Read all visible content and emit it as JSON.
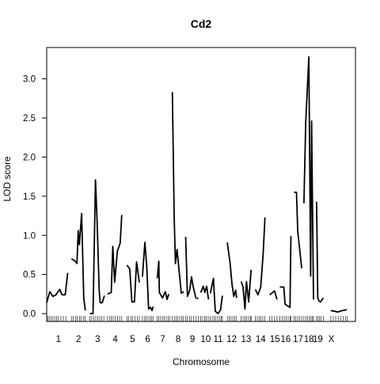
{
  "chart_data": {
    "type": "line",
    "title": "Cd2",
    "xlabel": "Chromosome",
    "ylabel": "LOD score",
    "ylim": [
      -0.1,
      3.4
    ],
    "yticks": [
      0.0,
      0.5,
      1.0,
      1.5,
      2.0,
      2.5,
      3.0
    ],
    "ytick_labels": [
      "0.0",
      "0.5",
      "1.0",
      "1.5",
      "2.0",
      "2.5",
      "3.0"
    ],
    "xlim": [
      0,
      100
    ],
    "grid": false,
    "rug": true,
    "chromosomes": [
      {
        "label": "1",
        "points": [
          [
            0.0,
            0.14
          ],
          [
            1.0,
            0.28
          ],
          [
            2.0,
            0.22
          ],
          [
            3.0,
            0.24
          ],
          [
            4.2,
            0.31
          ],
          [
            5.0,
            0.24
          ],
          [
            6.0,
            0.24
          ],
          [
            6.8,
            0.52
          ]
        ]
      },
      {
        "label": "2",
        "points": [
          [
            8.0,
            0.7
          ],
          [
            9.0,
            0.68
          ],
          [
            9.8,
            0.64
          ],
          [
            10.2,
            1.06
          ],
          [
            10.6,
            0.88
          ],
          [
            11.3,
            1.28
          ],
          [
            12.0,
            0.2
          ],
          [
            12.5,
            0.04
          ]
        ]
      },
      {
        "label": "3",
        "points": [
          [
            14.0,
            0.0
          ],
          [
            15.0,
            0.0
          ],
          [
            15.8,
            1.71
          ],
          [
            16.3,
            1.2
          ],
          [
            17.0,
            0.3
          ],
          [
            17.3,
            0.14
          ],
          [
            18.0,
            0.14
          ],
          [
            18.7,
            0.23
          ]
        ]
      },
      {
        "label": "4",
        "points": [
          [
            19.7,
            0.25
          ],
          [
            20.9,
            0.27
          ],
          [
            21.4,
            0.86
          ],
          [
            22.0,
            0.4
          ],
          [
            22.9,
            0.8
          ],
          [
            23.8,
            0.9
          ],
          [
            24.3,
            1.26
          ]
        ]
      },
      {
        "label": "5",
        "points": [
          [
            26.0,
            0.62
          ],
          [
            26.9,
            0.57
          ],
          [
            27.6,
            0.15
          ],
          [
            28.4,
            0.15
          ],
          [
            29.1,
            0.66
          ],
          [
            30.0,
            0.4
          ]
        ]
      },
      {
        "label": "6",
        "points": [
          [
            31.0,
            0.47
          ],
          [
            31.8,
            0.91
          ],
          [
            32.4,
            0.6
          ],
          [
            33.0,
            0.06
          ],
          [
            33.6,
            0.08
          ],
          [
            34.1,
            0.04
          ],
          [
            34.5,
            0.09
          ]
        ]
      },
      {
        "label": "7",
        "points": [
          [
            35.8,
            0.45
          ],
          [
            36.3,
            0.67
          ],
          [
            36.5,
            0.27
          ],
          [
            37.5,
            0.2
          ],
          [
            38.4,
            0.28
          ],
          [
            39.0,
            0.18
          ],
          [
            39.5,
            0.25
          ]
        ]
      },
      {
        "label": "8",
        "points": [
          [
            40.7,
            2.83
          ],
          [
            41.3,
            1.2
          ],
          [
            41.7,
            0.64
          ],
          [
            42.2,
            0.82
          ],
          [
            43.0,
            0.5
          ],
          [
            43.6,
            0.26
          ],
          [
            44.4,
            0.28
          ]
        ]
      },
      {
        "label": "9",
        "points": [
          [
            45.0,
            0.98
          ],
          [
            45.6,
            0.22
          ],
          [
            46.3,
            0.3
          ],
          [
            46.9,
            0.47
          ],
          [
            47.4,
            0.35
          ],
          [
            48.3,
            0.2
          ],
          [
            49.1,
            0.19
          ]
        ]
      },
      {
        "label": "10",
        "points": [
          [
            49.9,
            0.27
          ],
          [
            50.7,
            0.35
          ],
          [
            51.2,
            0.27
          ],
          [
            51.8,
            0.35
          ],
          [
            52.4,
            0.18
          ]
        ]
      },
      {
        "label": "11",
        "points": [
          [
            53.0,
            0.26
          ],
          [
            54.0,
            0.45
          ],
          [
            54.6,
            0.03
          ],
          [
            55.5,
            0.0
          ],
          [
            56.3,
            0.05
          ],
          [
            56.9,
            0.23
          ]
        ]
      },
      {
        "label": "12",
        "points": [
          [
            58.5,
            0.91
          ],
          [
            59.4,
            0.64
          ],
          [
            60.0,
            0.38
          ],
          [
            60.6,
            0.22
          ],
          [
            61.2,
            0.3
          ],
          [
            61.5,
            0.2
          ]
        ]
      },
      {
        "label": "13",
        "points": [
          [
            63.0,
            0.41
          ],
          [
            63.6,
            0.34
          ],
          [
            64.2,
            0.06
          ],
          [
            64.7,
            0.41
          ],
          [
            65.4,
            0.15
          ],
          [
            66.2,
            0.56
          ]
        ]
      },
      {
        "label": "14",
        "points": [
          [
            67.6,
            0.31
          ],
          [
            68.4,
            0.24
          ],
          [
            69.3,
            0.34
          ],
          [
            70.1,
            0.76
          ],
          [
            70.7,
            1.23
          ]
        ]
      },
      {
        "label": "15",
        "points": [
          [
            72.2,
            0.24
          ],
          [
            73.8,
            0.29
          ],
          [
            74.6,
            0.18
          ]
        ]
      },
      {
        "label": "16",
        "points": [
          [
            75.5,
            0.34
          ],
          [
            76.8,
            0.34
          ],
          [
            77.2,
            0.12
          ],
          [
            78.8,
            0.08
          ],
          [
            79.1,
            0.99
          ]
        ]
      },
      {
        "label": "17",
        "points": [
          [
            80.1,
            1.55
          ],
          [
            80.9,
            1.55
          ],
          [
            81.3,
            1.05
          ],
          [
            82.6,
            0.58
          ]
        ]
      },
      {
        "label": "18",
        "points": [
          [
            83.3,
            1.41
          ],
          [
            83.9,
            2.45
          ],
          [
            84.9,
            3.28
          ],
          [
            85.5,
            0.48
          ],
          [
            85.8,
            2.46
          ],
          [
            86.4,
            0.18
          ]
        ]
      },
      {
        "label": "19",
        "points": [
          [
            87.4,
            1.43
          ],
          [
            87.8,
            0.2
          ],
          [
            88.2,
            0.16
          ],
          [
            88.7,
            0.15
          ],
          [
            89.6,
            0.2
          ]
        ]
      },
      {
        "label": "X",
        "points": [
          [
            92.0,
            0.04
          ],
          [
            93.3,
            0.03
          ],
          [
            94.2,
            0.02
          ],
          [
            95.8,
            0.04
          ],
          [
            97.2,
            0.05
          ]
        ]
      }
    ],
    "chromosome_label_x": [
      3.8,
      10.3,
      16.5,
      22.2,
      27.8,
      32.7,
      37.6,
      42.6,
      47.2,
      51.5,
      55.5,
      59.9,
      64.6,
      69.3,
      73.9,
      77.4,
      81.4,
      84.9,
      87.8,
      92.2
    ],
    "marker_positions": [
      0.3,
      0.8,
      1.4,
      2.0,
      2.6,
      3.2,
      3.8,
      4.6,
      5.4,
      6.2,
      8.0,
      8.6,
      9.3,
      9.9,
      10.6,
      11.2,
      12.0,
      12.5,
      14.0,
      14.6,
      15.3,
      15.9,
      16.5,
      17.2,
      17.8,
      18.5,
      19.7,
      20.3,
      20.9,
      21.5,
      22.2,
      22.9,
      23.6,
      24.3,
      26.0,
      26.6,
      27.3,
      27.9,
      28.6,
      29.3,
      30.0,
      31.0,
      31.6,
      32.2,
      32.8,
      33.4,
      34.0,
      34.5,
      35.8,
      36.3,
      36.9,
      37.5,
      38.1,
      38.7,
      39.3,
      39.8,
      40.7,
      41.3,
      41.9,
      42.5,
      43.1,
      43.7,
      44.3,
      45.0,
      45.6,
      46.3,
      46.9,
      47.6,
      48.3,
      49.1,
      49.9,
      50.5,
      51.1,
      51.7,
      52.3,
      53.0,
      53.6,
      54.2,
      54.8,
      55.4,
      56.0,
      56.5,
      56.9,
      58.5,
      59.1,
      59.7,
      60.3,
      60.9,
      61.5,
      63.0,
      63.6,
      64.2,
      64.8,
      65.4,
      66.0,
      66.2,
      67.6,
      68.2,
      68.8,
      69.4,
      70.0,
      70.7,
      72.2,
      73.0,
      73.8,
      74.6,
      75.5,
      76.2,
      76.9,
      77.5,
      78.2,
      78.8,
      79.1,
      80.1,
      80.7,
      81.3,
      81.9,
      82.6,
      83.3,
      83.9,
      84.5,
      85.1,
      85.6,
      86.1,
      86.4,
      87.4,
      87.9,
      88.4,
      88.9,
      89.6,
      92.0,
      92.8,
      93.6,
      94.4,
      95.2,
      96.0,
      96.8,
      97.4
    ]
  }
}
